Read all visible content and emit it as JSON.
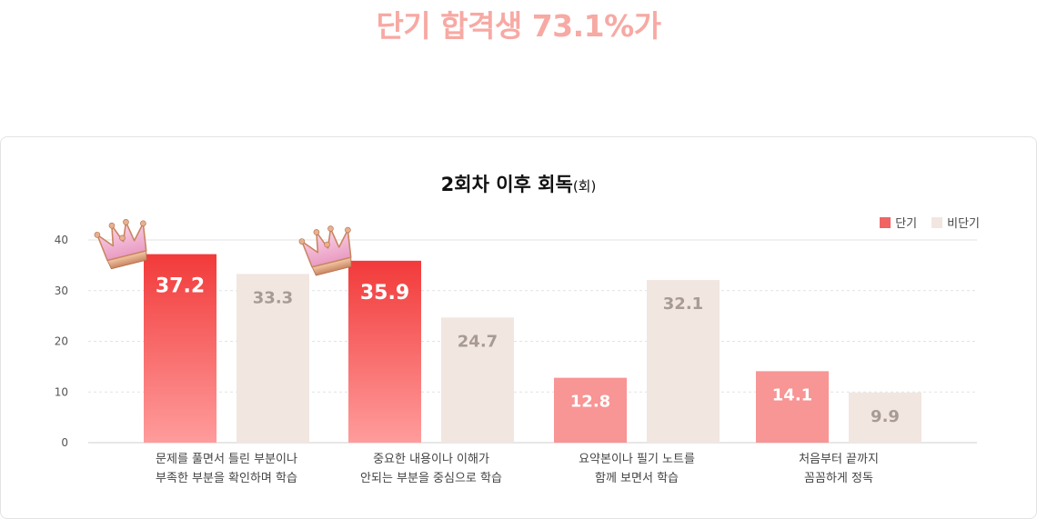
{
  "headline": "단기 합격생 73.1%가",
  "chart_data": {
    "type": "bar",
    "title": "2회차 이후 회독",
    "title_unit": "(회)",
    "categories": [
      [
        "문제를 풀면서 틀린 부분이나",
        "부족한 부분을 확인하며 학습"
      ],
      [
        "중요한 내용이나 이해가",
        "안되는 부분을 중심으로 학습"
      ],
      [
        "요약본이나 필기 노트를",
        "함께 보면서 학습"
      ],
      [
        "처음부터 끝까지",
        "꼼꼼하게 정독"
      ]
    ],
    "series": [
      {
        "name": "단기",
        "values": [
          37.2,
          35.9,
          12.8,
          14.1
        ]
      },
      {
        "name": "비단기",
        "values": [
          33.3,
          24.7,
          32.1,
          9.9
        ]
      }
    ],
    "y_ticks": [
      0,
      10,
      20,
      30,
      40
    ],
    "ylim": [
      0,
      40
    ],
    "crowned": [
      0,
      1
    ],
    "legend_position": "top-right",
    "grid": true,
    "colors": {
      "short_top": "#f23a3a",
      "short_bottom": "#ff9c9c",
      "short_light": "#f89595",
      "other": "#f2e6e1",
      "other_label": "#a89a95",
      "headline": "#f7a9a3"
    }
  }
}
